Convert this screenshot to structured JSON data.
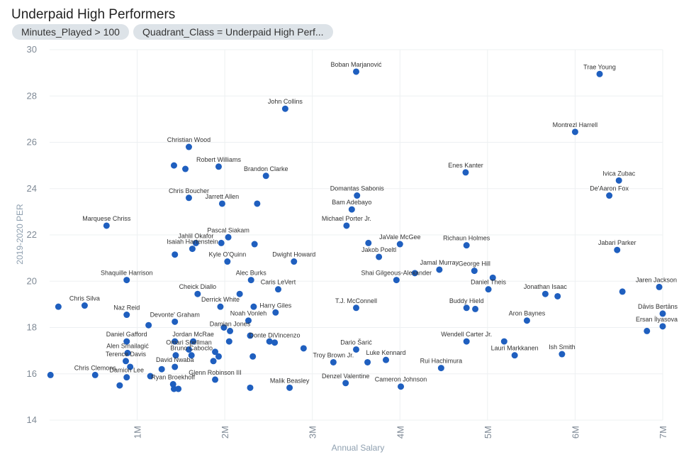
{
  "title": "Underpaid High Performers",
  "filters": [
    "Minutes_Played > 100",
    "Quadrant_Class = Underpaid High Perf..."
  ],
  "colors": {
    "point": "#1f5fbf",
    "grid": "#edf0f2",
    "tick": "#7f8a96",
    "axis_label": "#8fa0b0"
  },
  "chart_data": {
    "type": "scatter",
    "xlabel": "Annual Salary",
    "ylabel": "2019-2020 PER",
    "xlim": [
      0,
      7000000
    ],
    "ylim": [
      14,
      30
    ],
    "xticks": [
      1000000,
      2000000,
      3000000,
      4000000,
      5000000,
      6000000,
      7000000
    ],
    "xtick_labels": [
      "1M",
      "2M",
      "3M",
      "4M",
      "5M",
      "6M",
      "7M"
    ],
    "yticks": [
      14,
      16,
      18,
      20,
      22,
      24,
      26,
      28,
      30
    ],
    "ytick_labels": [
      "14",
      "16",
      "18",
      "20",
      "22",
      "24",
      "26",
      "28",
      "30"
    ],
    "grid": true,
    "points": [
      {
        "x": 3500000,
        "y": 29.05,
        "label": "Boban Marjanović"
      },
      {
        "x": 6280000,
        "y": 28.95,
        "label": "Trae Young"
      },
      {
        "x": 2690000,
        "y": 27.45,
        "label": "John Collins"
      },
      {
        "x": 6000000,
        "y": 26.45,
        "label": "Montrezl Harrell"
      },
      {
        "x": 1590000,
        "y": 25.8,
        "label": "Christian Wood"
      },
      {
        "x": 1420000,
        "y": 25.0,
        "label": ""
      },
      {
        "x": 1550000,
        "y": 24.85,
        "label": ""
      },
      {
        "x": 1930000,
        "y": 24.95,
        "label": "Robert Williams"
      },
      {
        "x": 2470000,
        "y": 24.55,
        "label": "Brandon Clarke"
      },
      {
        "x": 4750000,
        "y": 24.7,
        "label": "Enes Kanter"
      },
      {
        "x": 6500000,
        "y": 24.35,
        "label": "Ivica Zubac"
      },
      {
        "x": 3510000,
        "y": 23.7,
        "label": "Domantas Sabonis"
      },
      {
        "x": 6390000,
        "y": 23.7,
        "label": "De'Aaron Fox"
      },
      {
        "x": 1590000,
        "y": 23.6,
        "label": "Chris Boucher"
      },
      {
        "x": 1970000,
        "y": 23.35,
        "label": "Jarrett Allen"
      },
      {
        "x": 2370000,
        "y": 23.35,
        "label": ""
      },
      {
        "x": 3450000,
        "y": 23.1,
        "label": "Bam Adebayo"
      },
      {
        "x": 3390000,
        "y": 22.4,
        "label": "Michael Porter Jr."
      },
      {
        "x": 650000,
        "y": 22.4,
        "label": "Marquese Chriss"
      },
      {
        "x": 2040000,
        "y": 21.9,
        "label": "Pascal Siakam"
      },
      {
        "x": 1670000,
        "y": 21.65,
        "label": "Jahlil Okafor"
      },
      {
        "x": 1960000,
        "y": 21.65,
        "label": ""
      },
      {
        "x": 2340000,
        "y": 21.6,
        "label": ""
      },
      {
        "x": 3640000,
        "y": 21.65,
        "label": ""
      },
      {
        "x": 4000000,
        "y": 21.6,
        "label": "JaVale McGee"
      },
      {
        "x": 4760000,
        "y": 21.55,
        "label": "Richaun Holmes"
      },
      {
        "x": 1630000,
        "y": 21.4,
        "label": "Isaiah Hartenstein"
      },
      {
        "x": 1430000,
        "y": 21.15,
        "label": ""
      },
      {
        "x": 3760000,
        "y": 21.05,
        "label": "Jakob Poeltl"
      },
      {
        "x": 6480000,
        "y": 21.35,
        "label": "Jabari Parker"
      },
      {
        "x": 2030000,
        "y": 20.85,
        "label": "Kyle O'Quinn"
      },
      {
        "x": 2790000,
        "y": 20.85,
        "label": "Dwight Howard"
      },
      {
        "x": 4450000,
        "y": 20.5,
        "label": "Jamal Murray"
      },
      {
        "x": 4170000,
        "y": 20.35,
        "label": ""
      },
      {
        "x": 4850000,
        "y": 20.45,
        "label": "George Hill"
      },
      {
        "x": 5060000,
        "y": 20.15,
        "label": ""
      },
      {
        "x": 2300000,
        "y": 20.05,
        "label": "Alec Burks"
      },
      {
        "x": 3960000,
        "y": 20.05,
        "label": "Shai Gilgeous-Alexander"
      },
      {
        "x": 880000,
        "y": 20.05,
        "label": "Shaquille Harrison"
      },
      {
        "x": 2610000,
        "y": 19.65,
        "label": "Caris LeVert"
      },
      {
        "x": 5010000,
        "y": 19.65,
        "label": "Daniel Theis"
      },
      {
        "x": 6540000,
        "y": 19.55,
        "label": ""
      },
      {
        "x": 6960000,
        "y": 19.75,
        "label": "Jaren Jackson"
      },
      {
        "x": 1690000,
        "y": 19.45,
        "label": "Cheick Diallo"
      },
      {
        "x": 2170000,
        "y": 19.45,
        "label": ""
      },
      {
        "x": 5660000,
        "y": 19.45,
        "label": "Jonathan Isaac"
      },
      {
        "x": 5800000,
        "y": 19.35,
        "label": ""
      },
      {
        "x": 100000,
        "y": 18.9,
        "label": ""
      },
      {
        "x": 400000,
        "y": 18.95,
        "label": "Chris Silva"
      },
      {
        "x": 1950000,
        "y": 18.9,
        "label": "Derrick White"
      },
      {
        "x": 2330000,
        "y": 18.9,
        "label": ""
      },
      {
        "x": 3500000,
        "y": 18.85,
        "label": "T.J. McConnell"
      },
      {
        "x": 4760000,
        "y": 18.85,
        "label": "Buddy Hield"
      },
      {
        "x": 4860000,
        "y": 18.8,
        "label": ""
      },
      {
        "x": 2580000,
        "y": 18.65,
        "label": "Harry Giles"
      },
      {
        "x": 880000,
        "y": 18.55,
        "label": "Naz Reid"
      },
      {
        "x": 7000000,
        "y": 18.6,
        "label": "Dāvis Bertāns"
      },
      {
        "x": 1430000,
        "y": 18.25,
        "label": "Devonte' Graham"
      },
      {
        "x": 2270000,
        "y": 18.3,
        "label": "Noah Vonleh"
      },
      {
        "x": 5450000,
        "y": 18.3,
        "label": "Aron Baynes"
      },
      {
        "x": 1130000,
        "y": 18.1,
        "label": ""
      },
      {
        "x": 1990000,
        "y": 18.0,
        "label": ""
      },
      {
        "x": 2060000,
        "y": 17.85,
        "label": "Damian Jones"
      },
      {
        "x": 7000000,
        "y": 18.05,
        "label": "Ersan İlyasova"
      },
      {
        "x": 6820000,
        "y": 17.85,
        "label": ""
      },
      {
        "x": 2290000,
        "y": 17.65,
        "label": ""
      },
      {
        "x": 880000,
        "y": 17.4,
        "label": "Daniel Gafford"
      },
      {
        "x": 1430000,
        "y": 17.4,
        "label": ""
      },
      {
        "x": 1640000,
        "y": 17.4,
        "label": "Jordan McRae"
      },
      {
        "x": 2050000,
        "y": 17.4,
        "label": ""
      },
      {
        "x": 2510000,
        "y": 17.4,
        "label": ""
      },
      {
        "x": 2570000,
        "y": 17.35,
        "label": "Donte DiVincenzo"
      },
      {
        "x": 4760000,
        "y": 17.4,
        "label": "Wendell Carter Jr."
      },
      {
        "x": 5190000,
        "y": 17.4,
        "label": ""
      },
      {
        "x": 2900000,
        "y": 17.1,
        "label": ""
      },
      {
        "x": 1590000,
        "y": 17.05,
        "label": "Omari Spellman"
      },
      {
        "x": 1890000,
        "y": 16.95,
        "label": ""
      },
      {
        "x": 3500000,
        "y": 17.05,
        "label": "Dario Šarić"
      },
      {
        "x": 890000,
        "y": 16.9,
        "label": "Alen Smailagić"
      },
      {
        "x": 1440000,
        "y": 16.8,
        "label": ""
      },
      {
        "x": 1620000,
        "y": 16.8,
        "label": "Bruno Caboclo"
      },
      {
        "x": 1930000,
        "y": 16.75,
        "label": ""
      },
      {
        "x": 2320000,
        "y": 16.75,
        "label": ""
      },
      {
        "x": 3840000,
        "y": 16.6,
        "label": "Luke Kennard"
      },
      {
        "x": 5310000,
        "y": 16.8,
        "label": "Lauri Markkanen"
      },
      {
        "x": 5850000,
        "y": 16.85,
        "label": "Ish Smith"
      },
      {
        "x": 870000,
        "y": 16.55,
        "label": "Terence Davis"
      },
      {
        "x": 1870000,
        "y": 16.55,
        "label": ""
      },
      {
        "x": 3240000,
        "y": 16.5,
        "label": "Troy Brown Jr."
      },
      {
        "x": 3630000,
        "y": 16.5,
        "label": ""
      },
      {
        "x": 920000,
        "y": 16.3,
        "label": ""
      },
      {
        "x": 1430000,
        "y": 16.3,
        "label": "David Nwaba"
      },
      {
        "x": 1280000,
        "y": 16.2,
        "label": ""
      },
      {
        "x": 4470000,
        "y": 16.25,
        "label": "Rui Hachimura"
      },
      {
        "x": 10000,
        "y": 15.95,
        "label": ""
      },
      {
        "x": 520000,
        "y": 15.95,
        "label": "Chris Clemons"
      },
      {
        "x": 880000,
        "y": 15.85,
        "label": "Damion Lee"
      },
      {
        "x": 1150000,
        "y": 15.9,
        "label": ""
      },
      {
        "x": 1890000,
        "y": 15.75,
        "label": "Glenn Robinson III"
      },
      {
        "x": 3380000,
        "y": 15.6,
        "label": "Denzel Valentine"
      },
      {
        "x": 800000,
        "y": 15.5,
        "label": ""
      },
      {
        "x": 1410000,
        "y": 15.55,
        "label": "Ryan Broekhoff"
      },
      {
        "x": 4010000,
        "y": 15.45,
        "label": "Cameron Johnson"
      },
      {
        "x": 1420000,
        "y": 15.35,
        "label": ""
      },
      {
        "x": 1470000,
        "y": 15.35,
        "label": ""
      },
      {
        "x": 2290000,
        "y": 15.4,
        "label": ""
      },
      {
        "x": 2740000,
        "y": 15.4,
        "label": "Malik Beasley"
      }
    ]
  }
}
